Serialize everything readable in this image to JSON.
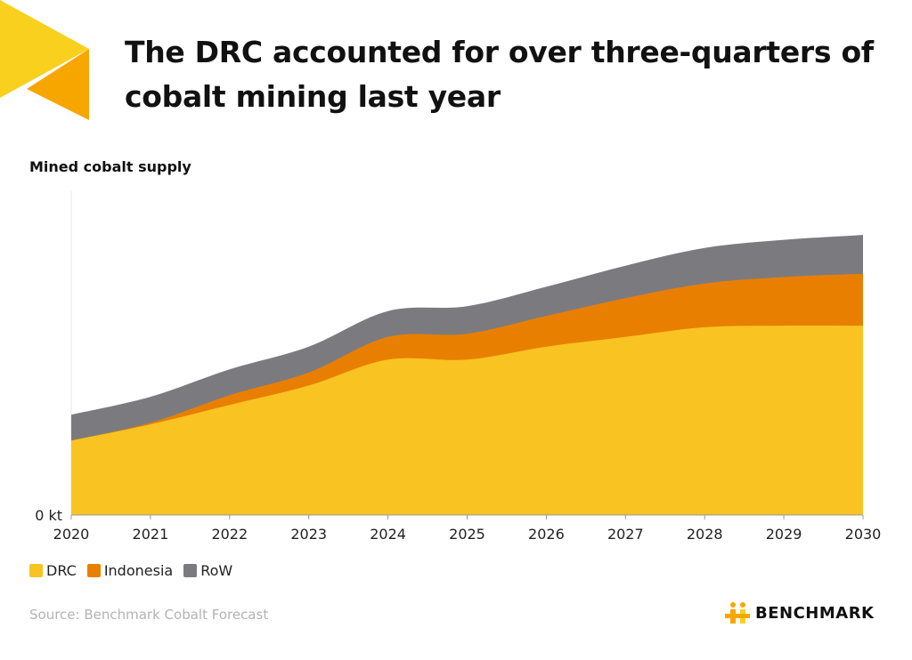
{
  "header": {
    "title": "The DRC accounted for over three-quarters of cobalt mining last year"
  },
  "colors": {
    "drc": "#F9C322",
    "indonesia": "#E97F00",
    "row": "#7B7B7F",
    "accent_yellow": "#F9D01E",
    "accent_orange": "#F7A600"
  },
  "chart_data": {
    "type": "area",
    "stacked": true,
    "subtitle": "Mined cobalt supply",
    "x": [
      "2020",
      "2021",
      "2022",
      "2023",
      "2024",
      "2025",
      "2026",
      "2027",
      "2028",
      "2029",
      "2030"
    ],
    "y_tick_label": "0 kt",
    "ylim": [
      0,
      100
    ],
    "series": [
      {
        "name": "DRC",
        "values": [
          23,
          28,
          34,
          40,
          48,
          48,
          52,
          55,
          58,
          58.5,
          58.5
        ]
      },
      {
        "name": "Indonesia",
        "values": [
          0,
          0.5,
          3,
          4,
          7,
          8,
          9.5,
          12,
          13.5,
          15,
          16
        ]
      },
      {
        "name": "RoW",
        "values": [
          8,
          8,
          8,
          8,
          8,
          8.5,
          9,
          10,
          11,
          11.5,
          12
        ]
      }
    ],
    "grid": false,
    "legend_position": "bottom-left"
  },
  "legend": {
    "items": [
      {
        "label": "DRC"
      },
      {
        "label": "Indonesia"
      },
      {
        "label": "RoW"
      }
    ]
  },
  "footer": {
    "source": "Source: Benchmark Cobalt Forecast",
    "brand": "BENCHMARK"
  }
}
